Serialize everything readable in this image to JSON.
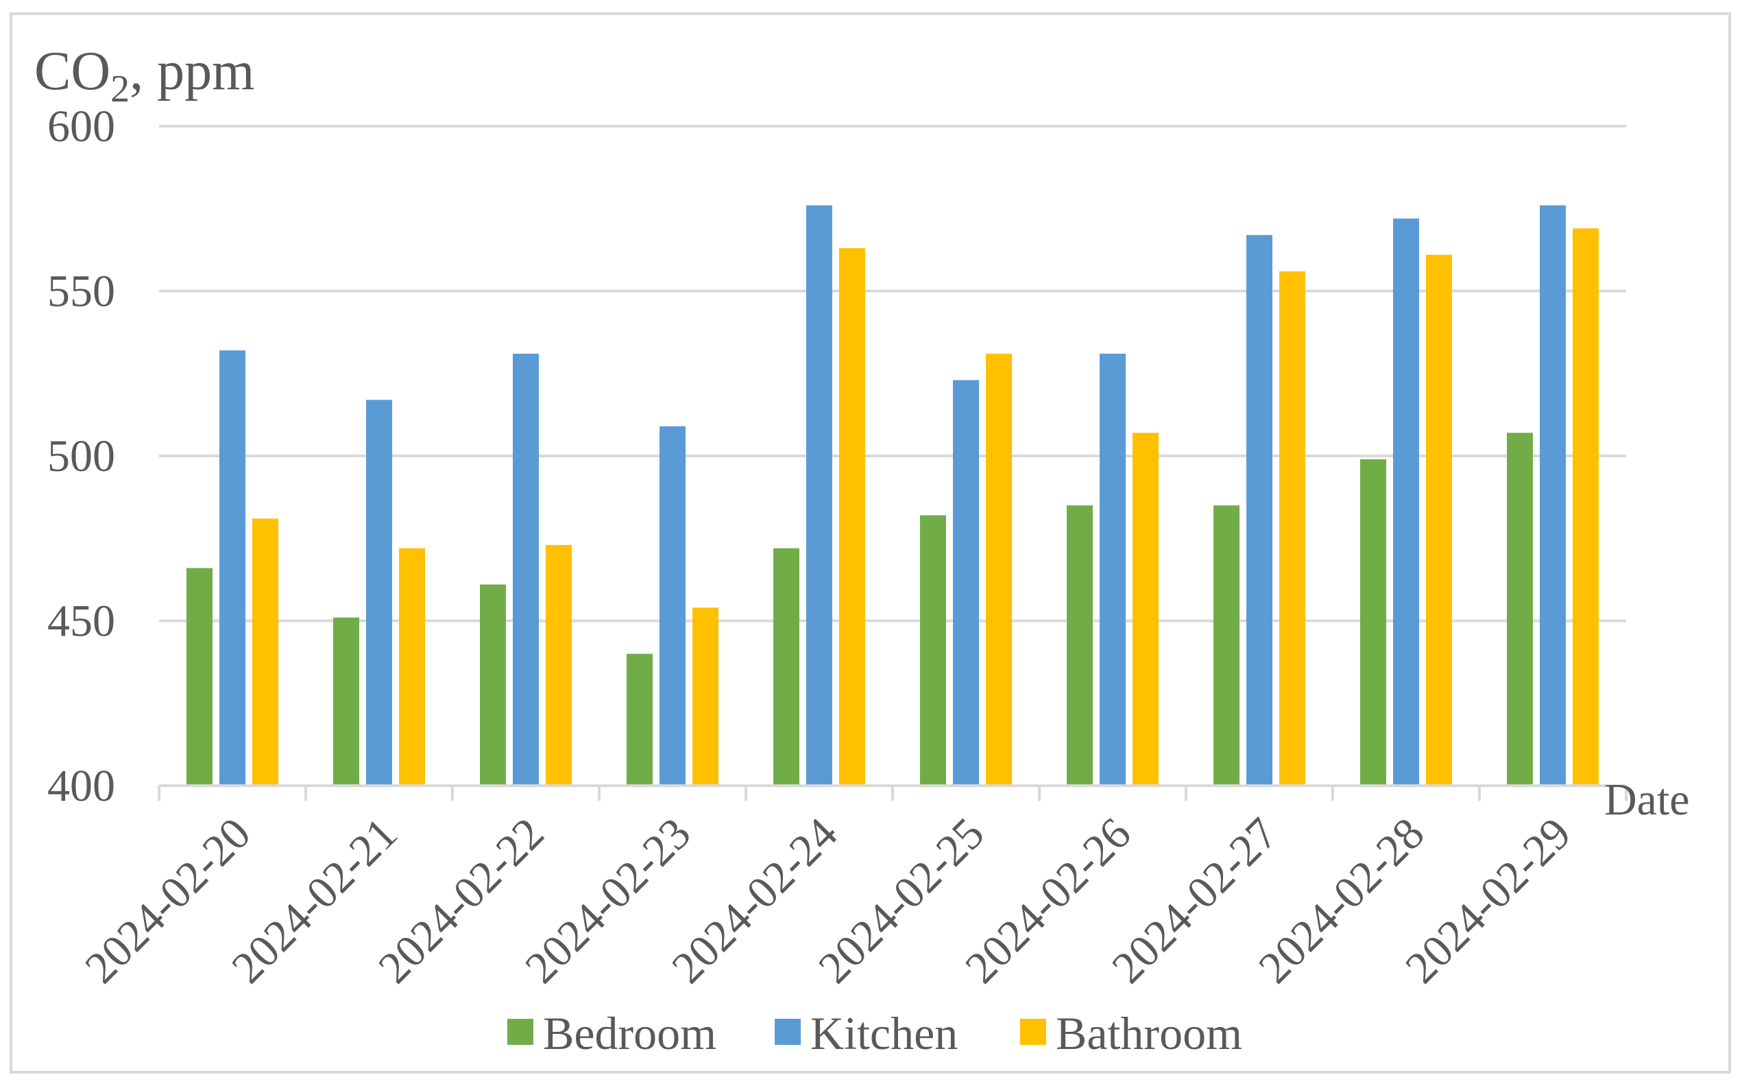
{
  "chart_data": {
    "type": "bar",
    "title_parts": {
      "main": "CO",
      "subscript": "2",
      "rest": ", ppm"
    },
    "xlabel": "Date",
    "ylim": [
      400,
      600
    ],
    "yticks": [
      400,
      450,
      500,
      550,
      600
    ],
    "grid": true,
    "legend_position": "bottom",
    "categories": [
      "2024-02-20",
      "2024-02-21",
      "2024-02-22",
      "2024-02-23",
      "2024-02-24",
      "2024-02-25",
      "2024-02-26",
      "2024-02-27",
      "2024-02-28",
      "2024-02-29"
    ],
    "series": [
      {
        "name": "Bedroom",
        "color": "#70ad47",
        "values": [
          466,
          451,
          461,
          440,
          472,
          482,
          485,
          485,
          499,
          507
        ]
      },
      {
        "name": "Kitchen",
        "color": "#5b9bd5",
        "values": [
          532,
          517,
          531,
          509,
          576,
          523,
          531,
          567,
          572,
          576
        ]
      },
      {
        "name": "Bathroom",
        "color": "#ffc000",
        "values": [
          481,
          472,
          473,
          454,
          563,
          531,
          507,
          556,
          561,
          569
        ]
      }
    ]
  }
}
